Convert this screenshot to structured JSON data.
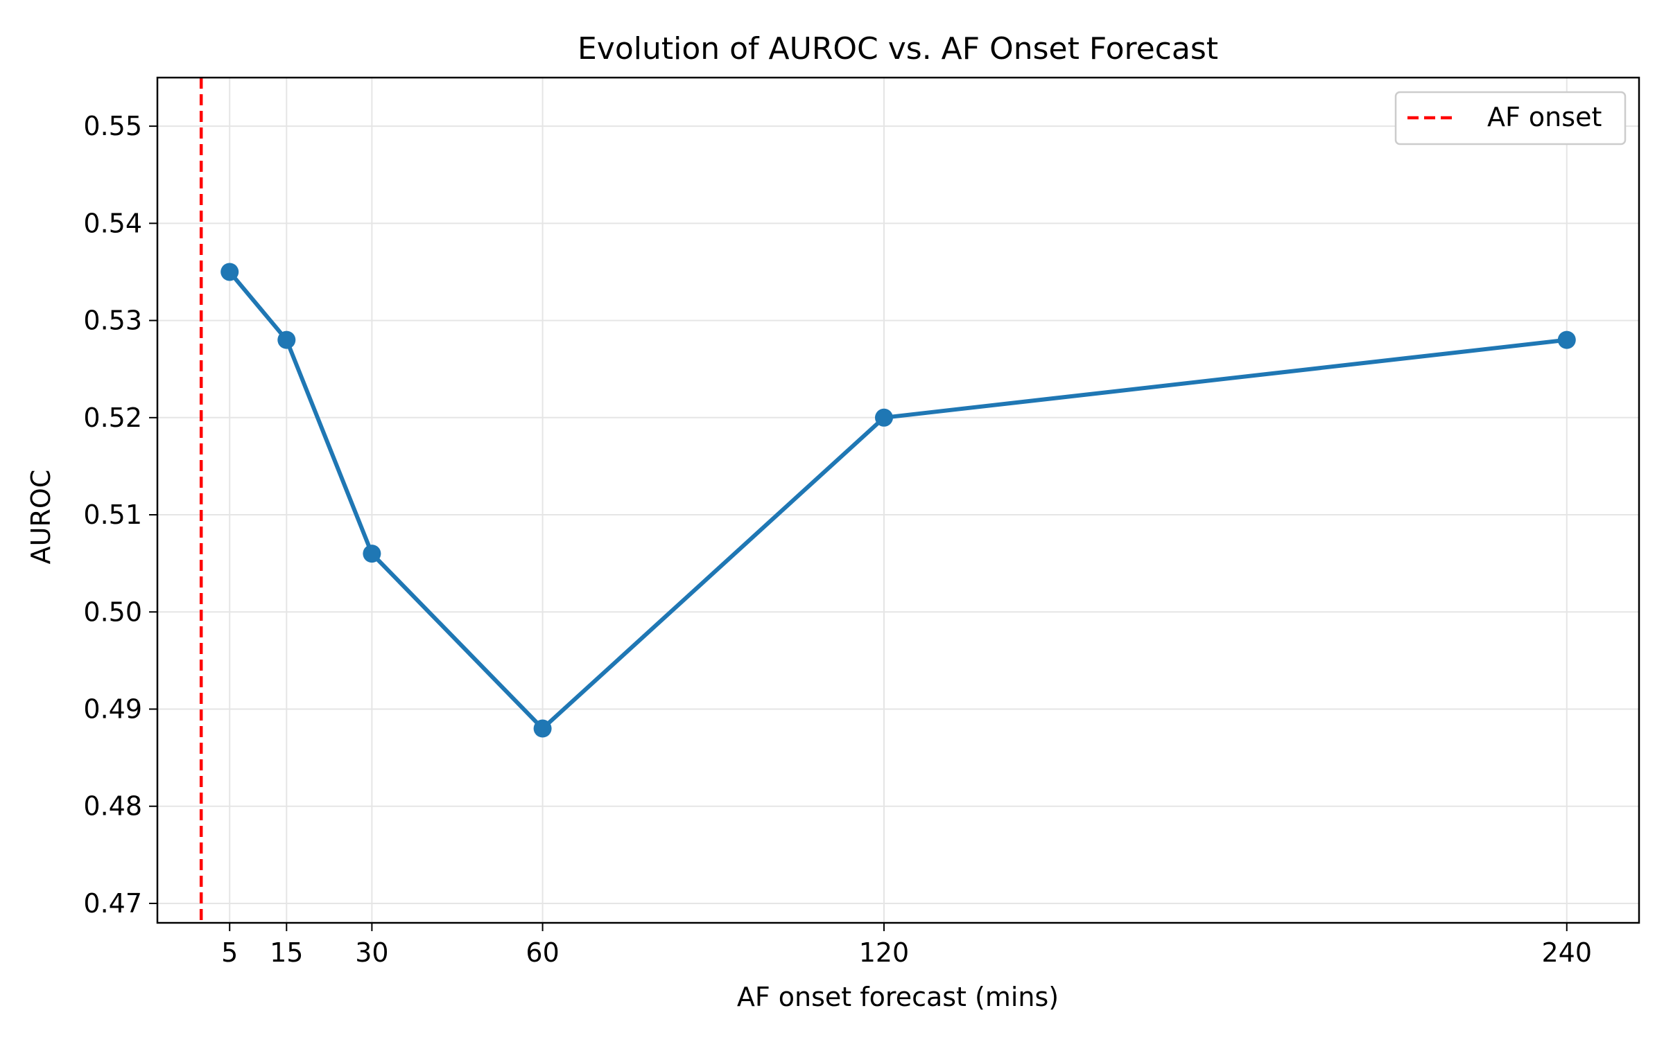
{
  "chart_data": {
    "type": "line",
    "title": "Evolution of AUROC vs. AF Onset Forecast",
    "xlabel": "AF onset forecast (mins)",
    "ylabel": "AUROC",
    "xlim": [
      -7.7,
      252.7
    ],
    "ylim": [
      0.468,
      0.555
    ],
    "x": [
      5,
      15,
      30,
      60,
      120,
      240
    ],
    "xticks": [
      5,
      15,
      30,
      60,
      120,
      240
    ],
    "yticks": [
      0.47,
      0.48,
      0.49,
      0.5,
      0.51,
      0.52,
      0.53,
      0.54,
      0.55
    ],
    "ytick_labels": [
      "0.47",
      "0.48",
      "0.49",
      "0.50",
      "0.51",
      "0.52",
      "0.53",
      "0.54",
      "0.55"
    ],
    "grid": true,
    "series": [
      {
        "values": [
          0.535,
          0.528,
          0.506,
          0.488,
          0.52,
          0.528
        ],
        "color": "#1f77b4",
        "marker": "circle"
      }
    ],
    "reference_lines": [
      {
        "orientation": "vertical",
        "x": 0,
        "style": "dashed",
        "color": "#ff0000",
        "label": "AF onset"
      }
    ],
    "legend": {
      "position": "top-right",
      "entries": [
        "AF onset"
      ]
    }
  }
}
